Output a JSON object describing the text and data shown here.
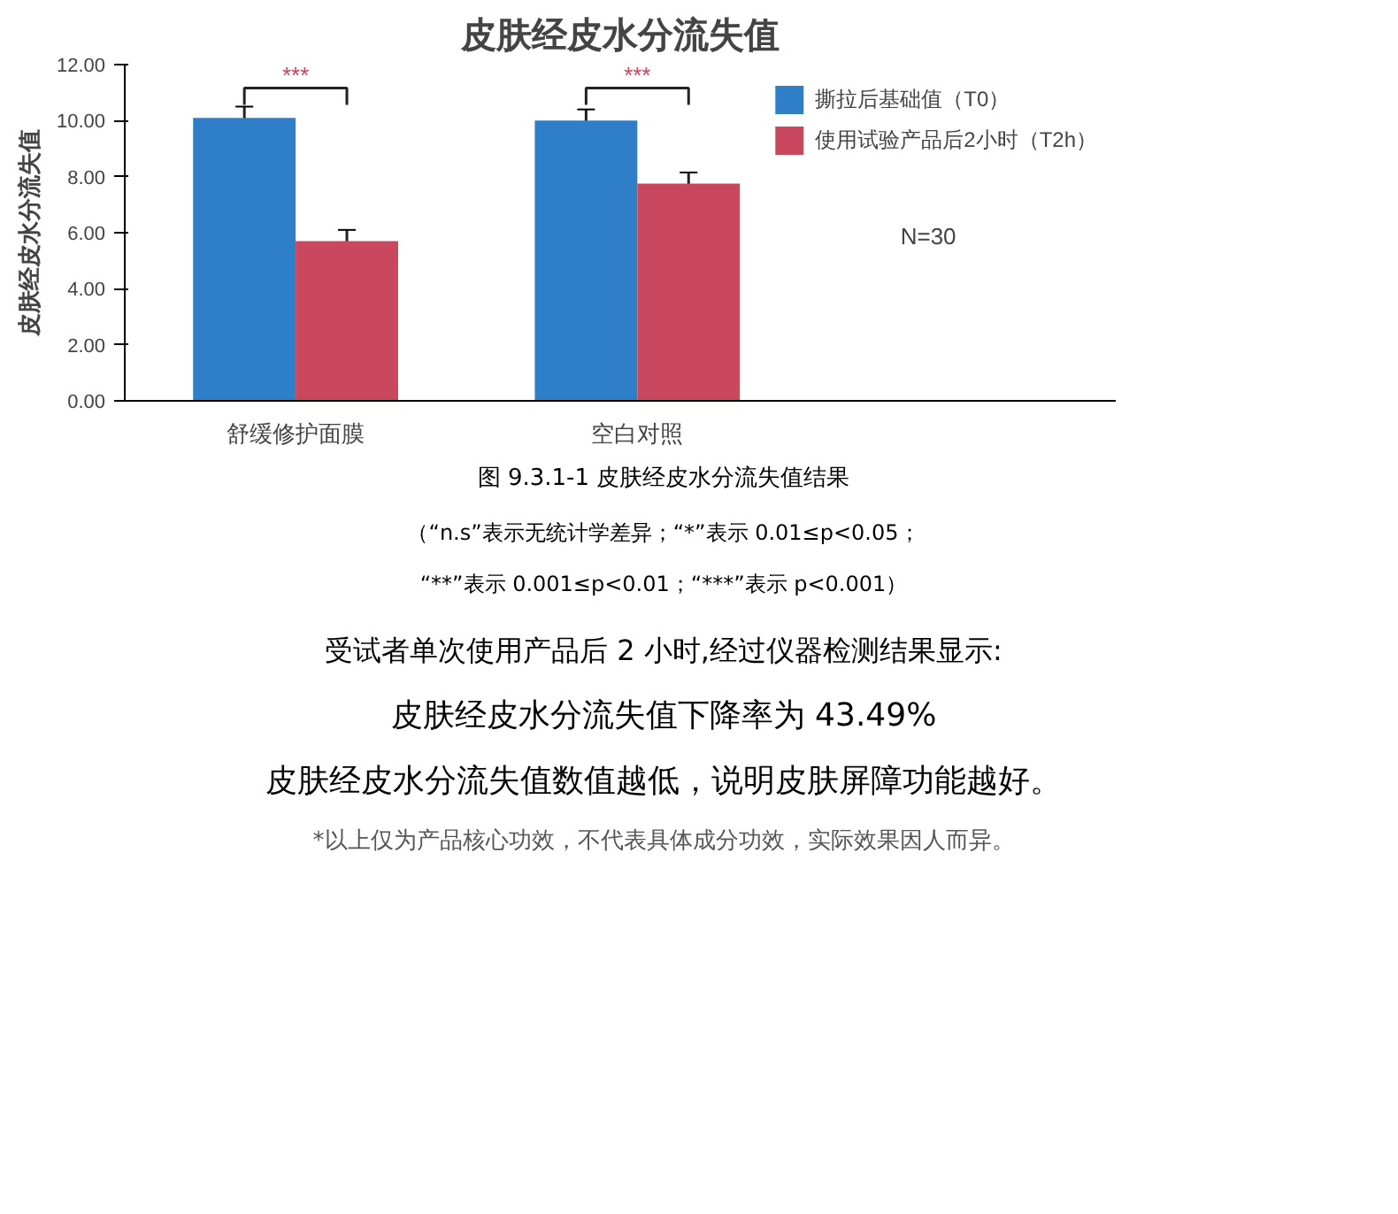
{
  "chart_data": {
    "type": "bar",
    "title": "皮肤经皮水分流失值",
    "ylabel": "皮肤经皮水分流失值",
    "categories": [
      "舒缓修护面膜",
      "空白对照"
    ],
    "series": [
      {
        "name": "撕拉后基础值（T0）",
        "color": "#2f7fc8",
        "values": [
          10.1,
          10.0
        ],
        "errors": [
          0.4,
          0.4
        ]
      },
      {
        "name": "使用试验产品后2小时（T2h）",
        "color": "#c9485e",
        "values": [
          5.7,
          7.75
        ],
        "errors": [
          0.4,
          0.4
        ]
      }
    ],
    "ylim": [
      0,
      12
    ],
    "yticks": [
      {
        "value": 0,
        "label": "0.00"
      },
      {
        "value": 2,
        "label": "2.00"
      },
      {
        "value": 4,
        "label": "4.00"
      },
      {
        "value": 6,
        "label": "6.00"
      },
      {
        "value": 8,
        "label": "8.00"
      },
      {
        "value": 10,
        "label": "10.00"
      },
      {
        "value": 12,
        "label": "12.00"
      }
    ],
    "grid": false,
    "legend": "right",
    "annotations": [
      "***",
      "***",
      "N=30",
      "图 9.3.1-1 皮肤经皮水分流失值结果",
      "（“n.s”表示无统计学差异；“*”表示 0.01≤p<0.05；",
      "“**”表示 0.001≤p<0.01；“***”表示 p<0.001）",
      "受试者单次使用产品后 2 小时,经过仪器检测结果显示:",
      "皮肤经皮水分流失值下降率为 43.49%",
      "皮肤经皮水分流失值数值越低，说明皮肤屏障功能越好。",
      "*以上仅为产品核心功效，不代表具体成分功效，实际效果因人而异。"
    ]
  }
}
